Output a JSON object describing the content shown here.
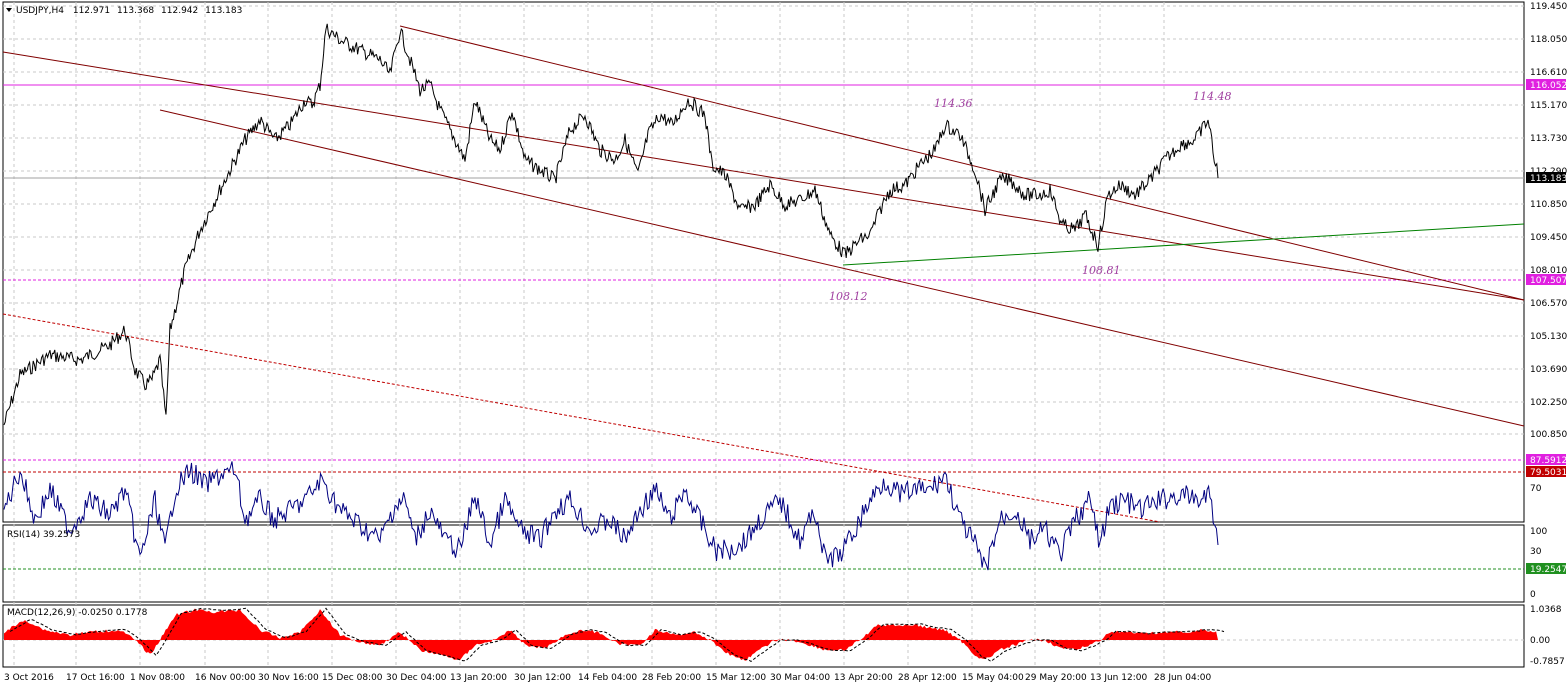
{
  "header": {
    "symbol": "USDJPY,H4",
    "open": "112.971",
    "high": "113.368",
    "low": "112.942",
    "close": "113.183"
  },
  "price_axis": [
    "119.450",
    "118.050",
    "116.610",
    "115.170",
    "113.730",
    "112.290",
    "110.850",
    "109.450",
    "108.010",
    "106.570",
    "105.130",
    "103.690",
    "102.250",
    "100.850"
  ],
  "price_tags": {
    "resistance": {
      "value": "116.052",
      "color": "#e020e0"
    },
    "current": {
      "value": "113.183",
      "color": "#000000"
    },
    "support": {
      "value": "107.507",
      "color": "#e020e0"
    }
  },
  "annotations": [
    "114.36",
    "114.48",
    "108.12",
    "108.81"
  ],
  "rsi": {
    "title": "RSI(14) 39.2573",
    "axis": [
      "100",
      "70",
      "30",
      "0"
    ],
    "levels": [
      {
        "value": "87.5912",
        "color": "#e020e0"
      },
      {
        "value": "79.5031",
        "color": "#c00000"
      },
      {
        "value": "19.2547",
        "color": "#209020"
      }
    ]
  },
  "macd": {
    "title": "MACD(12,26,9) -0.0250 0.1778",
    "axis": [
      "1.0368",
      "0.00",
      "-0.7857"
    ]
  },
  "time_axis": [
    "3 Oct 2016",
    "17 Oct 16:00",
    "1 Nov 08:00",
    "16 Nov 00:00",
    "30 Nov 16:00",
    "15 Dec 08:00",
    "30 Dec 04:00",
    "13 Jan 20:00",
    "30 Jan 12:00",
    "14 Feb 04:00",
    "28 Feb 20:00",
    "15 Mar 12:00",
    "30 Mar 04:00",
    "13 Apr 20:00",
    "28 Apr 12:00",
    "15 May 04:00",
    "29 May 20:00",
    "13 Jun 12:00",
    "28 Jun 04:00"
  ],
  "colors": {
    "price_line": "#000000",
    "channel": "#800000",
    "trend_green": "#008000",
    "rsi_line": "#000080",
    "macd_hist": "#ff0000",
    "grid": "#c0c0c0"
  }
}
